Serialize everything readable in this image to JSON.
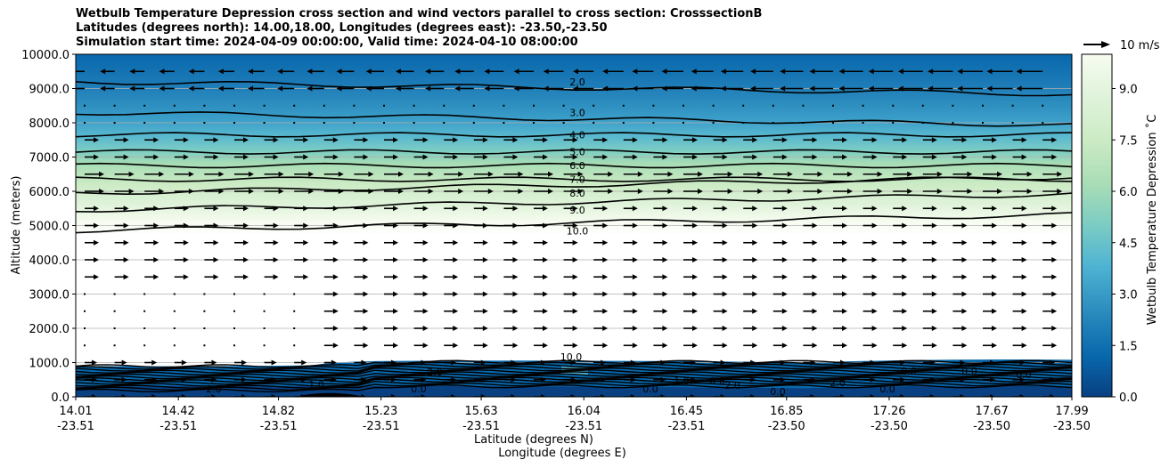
{
  "title": {
    "line1": "Wetbulb Temperature Depression cross section and wind vectors parallel to cross section: CrosssectionB",
    "line2": "Latitudes (degrees north): 14.00,18.00, Longitudes (degrees east): -23.50,-23.50",
    "line3": "Simulation start time: 2024-04-09 00:00:00, Valid time: 2024-04-10 08:00:00"
  },
  "chart_data": {
    "type": "contour",
    "title": "Wetbulb Temperature Depression cross section and wind vectors parallel to cross section: CrosssectionB",
    "ylabel": "Altitude (meters)",
    "xlabel_lat": "Latitude (degrees N)",
    "xlabel_lon": "Longitude (degrees E)",
    "ylim": [
      0,
      10000
    ],
    "y_ticks": [
      "0.0",
      "1000.0",
      "2000.0",
      "3000.0",
      "4000.0",
      "5000.0",
      "6000.0",
      "7000.0",
      "8000.0",
      "9000.0",
      "10000.0"
    ],
    "x_ticks": [
      {
        "lat": "14.01",
        "lon": "-23.51"
      },
      {
        "lat": "14.42",
        "lon": "-23.51"
      },
      {
        "lat": "14.82",
        "lon": "-23.51"
      },
      {
        "lat": "15.23",
        "lon": "-23.51"
      },
      {
        "lat": "15.63",
        "lon": "-23.51"
      },
      {
        "lat": "16.04",
        "lon": "-23.51"
      },
      {
        "lat": "16.45",
        "lon": "-23.51"
      },
      {
        "lat": "16.85",
        "lon": "-23.50"
      },
      {
        "lat": "17.26",
        "lon": "-23.50"
      },
      {
        "lat": "17.67",
        "lon": "-23.50"
      },
      {
        "lat": "17.99",
        "lon": "-23.50"
      }
    ],
    "colorbar": {
      "label": "Wetbulb Temperature Depression ˚C",
      "range": [
        0,
        10
      ],
      "ticks": [
        "0.0",
        "1.5",
        "3.0",
        "4.5",
        "6.0",
        "7.5",
        "9.0"
      ],
      "colors": [
        "#084081",
        "#0868ac",
        "#2b8cbe",
        "#4eb3d3",
        "#7bccc4",
        "#a8ddb5",
        "#ccebc5",
        "#e0f3db",
        "#f7fcf0"
      ]
    },
    "contour_levels": [
      {
        "value": 2.0,
        "label": "2.0",
        "altitude": 9200
      },
      {
        "value": 3.0,
        "label": "3.0",
        "altitude": 8300
      },
      {
        "value": 4.0,
        "label": "4.0",
        "altitude": 7650
      },
      {
        "value": 5.0,
        "label": "5.0",
        "altitude": 7150
      },
      {
        "value": 6.0,
        "label": "6.0",
        "altitude": 6750
      },
      {
        "value": 7.0,
        "label": "7.0",
        "altitude": 6350
      },
      {
        "value": 8.0,
        "label": "8.0",
        "altitude": 5950
      },
      {
        "value": 9.0,
        "label": "9.0",
        "altitude": 5450
      },
      {
        "value": 10.0,
        "label": "10.0",
        "altitude": 4850
      }
    ],
    "lower_contour_labels": [
      "10.0",
      "2.0",
      "1.0",
      "0.0",
      "2.0",
      "0.0",
      "1.0",
      "0.0",
      "2.0",
      "0.0",
      "2.0",
      "0.0",
      "0.0",
      "0.0",
      "0.0"
    ],
    "wind_reference": {
      "label": "10 m/s",
      "speed": 10
    }
  }
}
